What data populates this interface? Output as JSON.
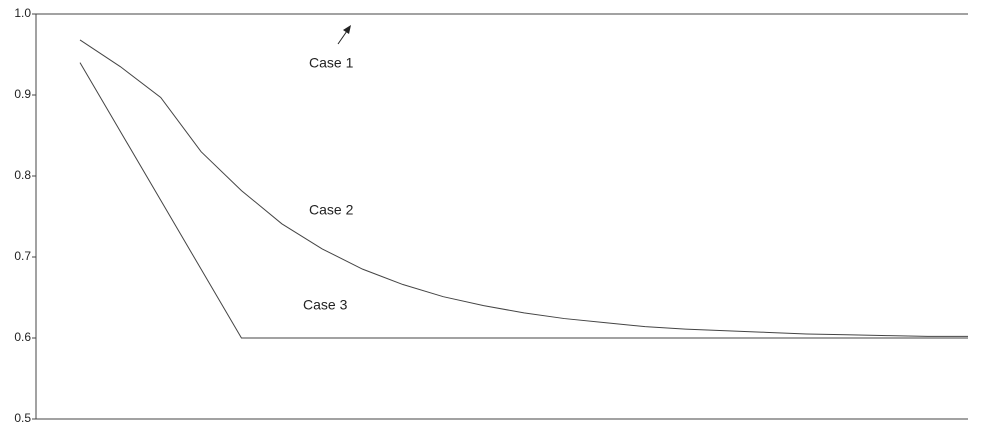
{
  "chart_data": {
    "type": "line",
    "categories": [
      null,
      null,
      null,
      null,
      null,
      null,
      null,
      null,
      null,
      null,
      null,
      null,
      null,
      null,
      null,
      null,
      null,
      null,
      null,
      null,
      null,
      null,
      null
    ],
    "series": [
      {
        "name": "Case 1",
        "color": "#444444",
        "values": [
          1,
          1,
          1,
          1,
          1,
          1,
          1,
          1,
          1,
          1,
          1,
          1,
          1,
          1,
          1,
          1,
          1,
          1,
          1,
          1,
          1,
          1,
          1
        ]
      },
      {
        "name": "Case 2",
        "color": "#444444",
        "values": [
          0.968,
          0.935,
          0.897,
          0.83,
          0.782,
          0.741,
          0.71,
          0.685,
          0.666,
          0.651,
          0.64,
          0.631,
          0.624,
          0.619,
          0.614,
          0.611,
          0.609,
          0.607,
          0.605,
          0.604,
          0.603,
          0.602,
          0.602
        ]
      },
      {
        "name": "Case 3",
        "color": "#444444",
        "values": [
          0.94,
          0.855,
          0.77,
          0.685,
          0.6,
          0.6,
          0.6,
          0.6,
          0.6,
          0.6,
          0.6,
          0.6,
          0.6,
          0.6,
          0.6,
          0.6,
          0.6,
          0.6,
          0.6,
          0.6,
          0.6,
          0.6,
          0.6
        ]
      }
    ],
    "ylim": [
      0.5,
      1
    ],
    "yticks": [
      0.5,
      0.6,
      0.7,
      0.8,
      0.9,
      {
        "value": 1,
        "label": "1.0"
      }
    ],
    "grid": false,
    "legend": false
  }
}
